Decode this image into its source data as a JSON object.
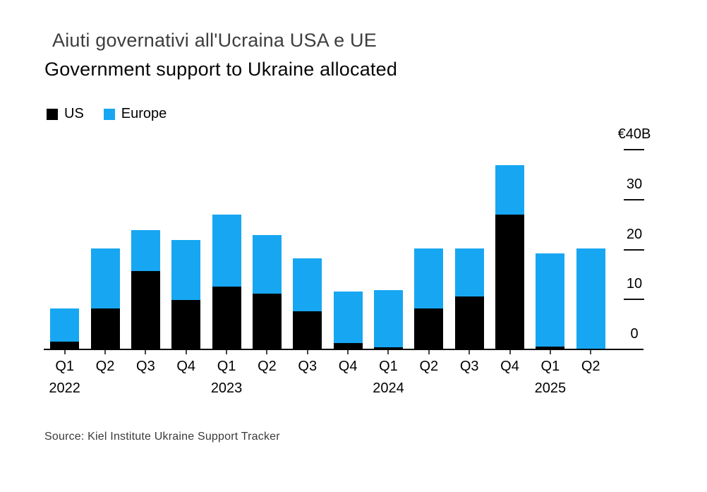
{
  "header": {
    "title_it": "Aiuti governativi all'Ucraina USA e UE",
    "title_en": "Government support to Ukraine allocated"
  },
  "legend": {
    "items": [
      {
        "label": "US",
        "color": "#000000"
      },
      {
        "label": "Europe",
        "color": "#17a7f2"
      }
    ]
  },
  "source": {
    "text": "Source: Kiel Institute Ukraine Support Tracker"
  },
  "colors": {
    "us": "#000000",
    "europe": "#17a7f2",
    "axis": "#000000",
    "title": "#3e3e3e"
  },
  "chart_data": {
    "type": "bar",
    "stacked": true,
    "title": "Government support to Ukraine allocated",
    "subtitle_translated": "Aiuti governativi all'Ucraina USA e UE",
    "unit": "EUR billions",
    "categories": [
      "Q1 2022",
      "Q2 2022",
      "Q3 2022",
      "Q4 2022",
      "Q1 2023",
      "Q2 2023",
      "Q3 2023",
      "Q4 2023",
      "Q1 2024",
      "Q2 2024",
      "Q3 2024",
      "Q4 2024",
      "Q1 2025",
      "Q2 2025"
    ],
    "x_tick_labels": [
      "Q1",
      "Q2",
      "Q3",
      "Q4",
      "Q1",
      "Q2",
      "Q3",
      "Q4",
      "Q1",
      "Q2",
      "Q3",
      "Q4",
      "Q1",
      "Q2"
    ],
    "year_labels": [
      {
        "index": 0,
        "label": "2022"
      },
      {
        "index": 4,
        "label": "2023"
      },
      {
        "index": 8,
        "label": "2024"
      },
      {
        "index": 12,
        "label": "2025"
      }
    ],
    "series": [
      {
        "name": "US",
        "color": "#000000",
        "values": [
          1.4,
          8.0,
          15.5,
          9.8,
          12.5,
          11.0,
          7.5,
          1.2,
          0.3,
          8.1,
          10.5,
          26.9,
          0.4,
          0
        ]
      },
      {
        "name": "Europe",
        "color": "#17a7f2",
        "values": [
          6.7,
          12.1,
          8.2,
          11.9,
          14.3,
          11.7,
          10.6,
          10.3,
          11.4,
          12.0,
          9.6,
          9.9,
          18.7,
          20.1
        ]
      }
    ],
    "totals": [
      8.1,
      20.1,
      23.7,
      21.7,
      26.8,
      22.7,
      18.1,
      11.5,
      11.7,
      20.1,
      20.1,
      36.8,
      19.1,
      20.1
    ],
    "ylim": [
      0,
      40
    ],
    "y_ticks": [
      0,
      10,
      20,
      30,
      40
    ],
    "y_tick_labels": [
      "0",
      "10",
      "20",
      "30",
      "€40B"
    ],
    "grid": false,
    "legend_position": "top-left",
    "axis_side": "right"
  }
}
